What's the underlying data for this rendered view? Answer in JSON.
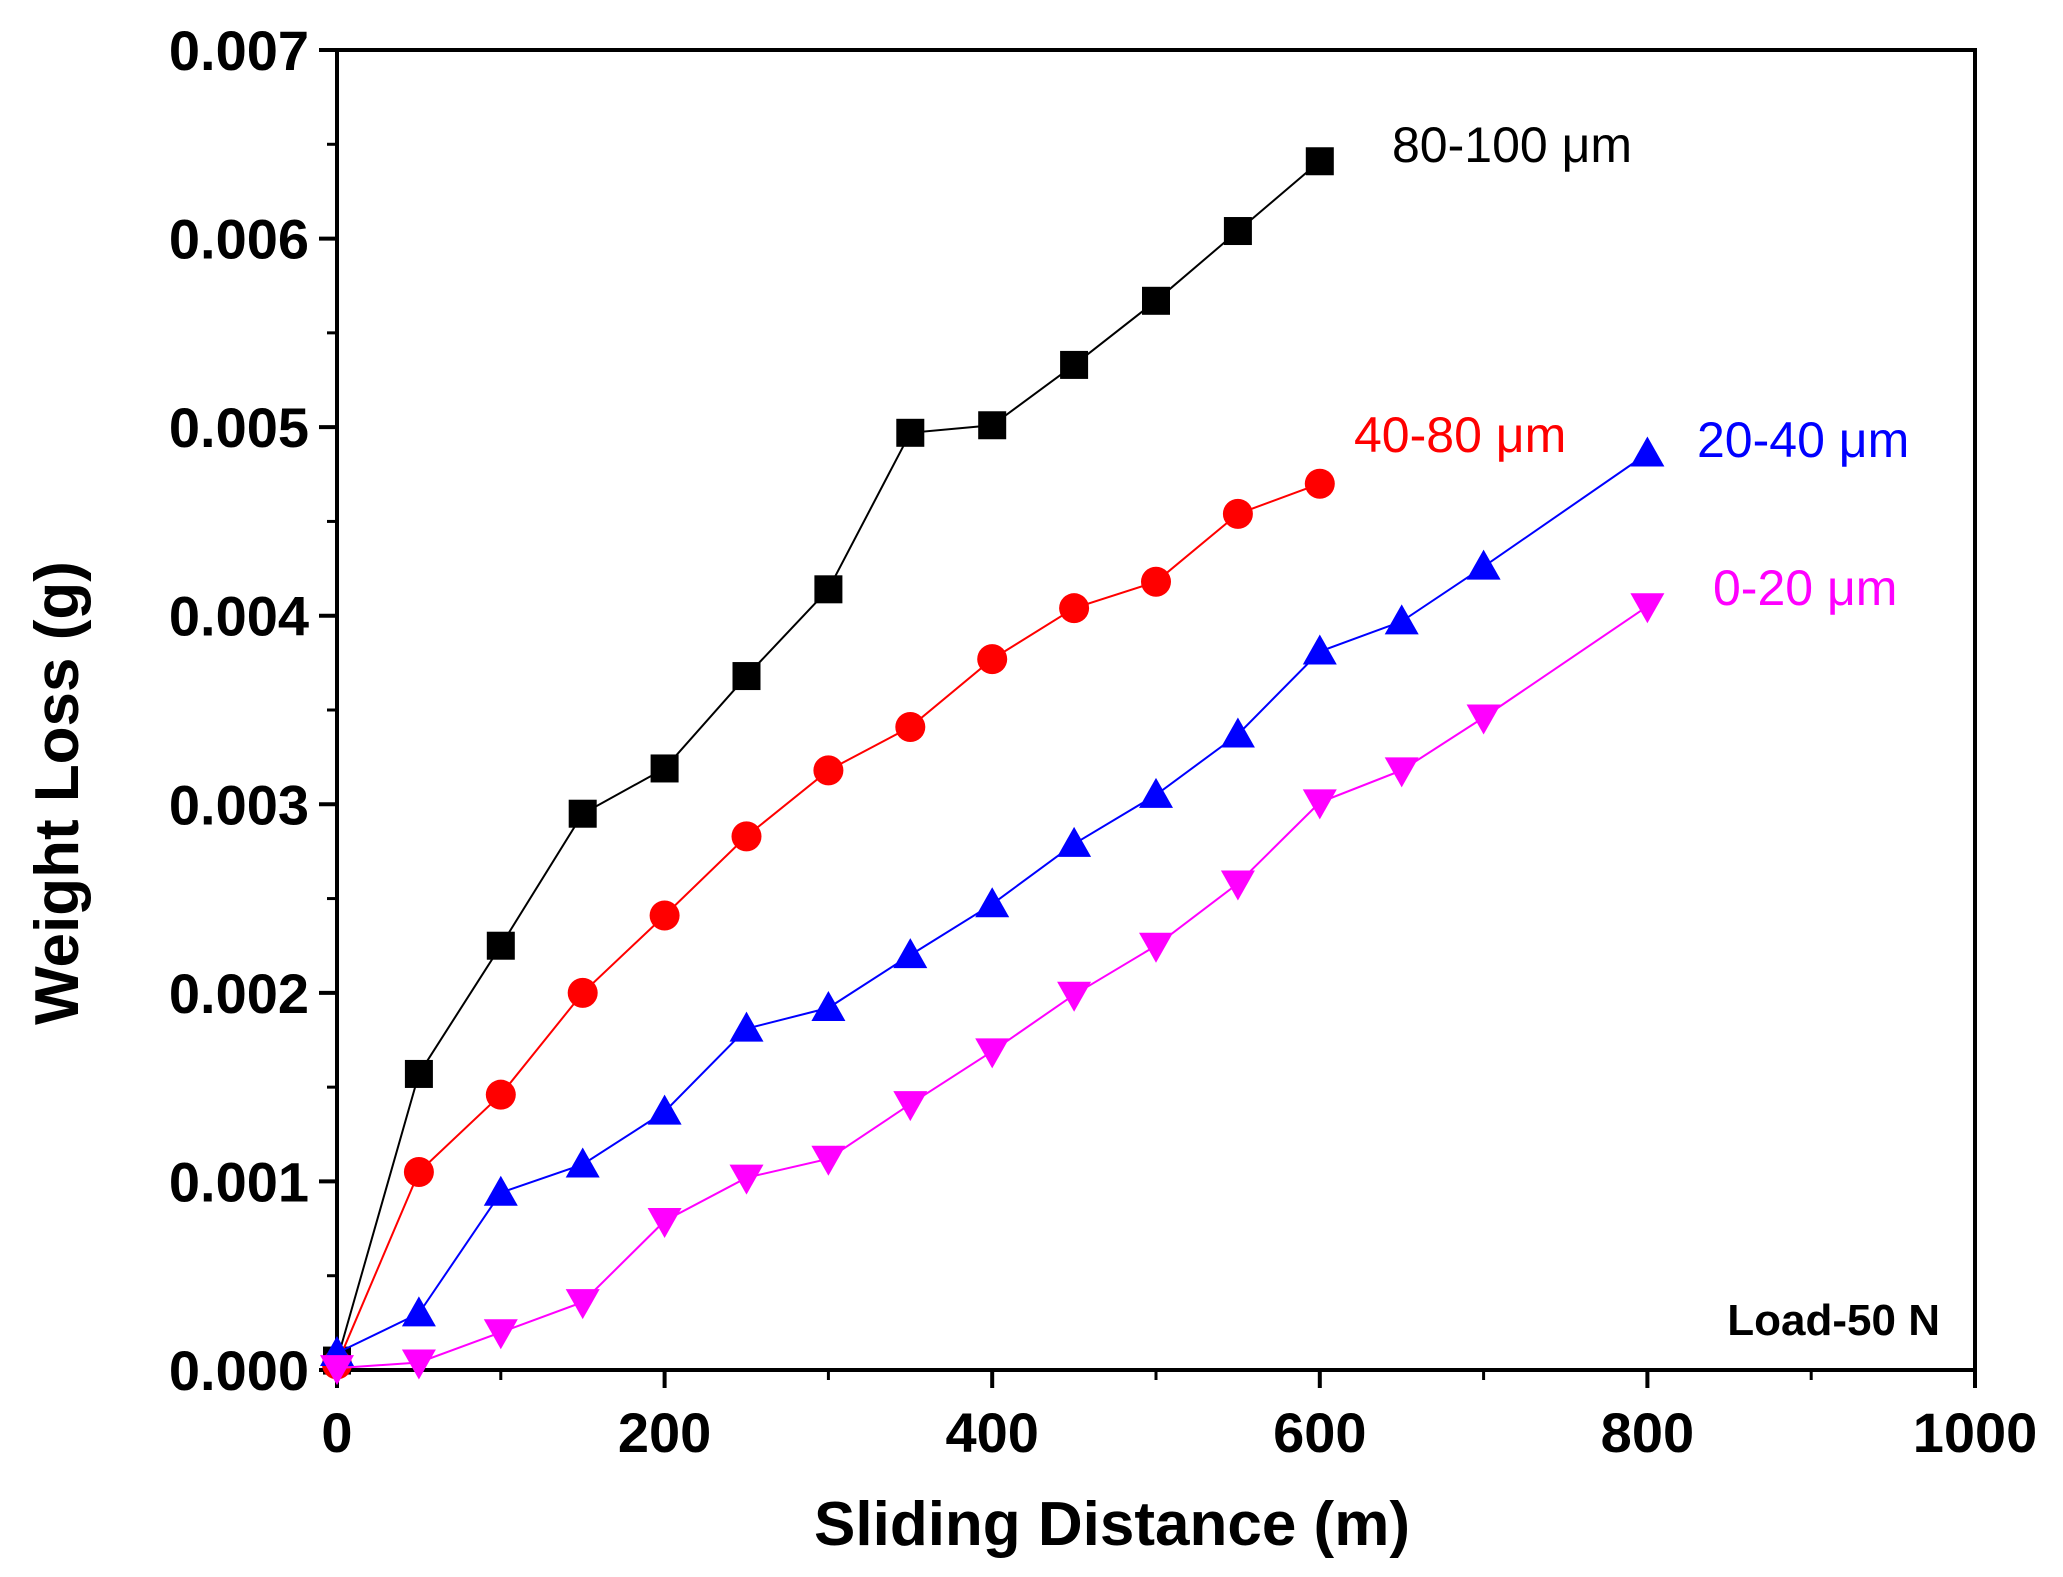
{
  "chart_data": {
    "type": "line",
    "title": "",
    "xlabel": "Sliding Distance (m)",
    "ylabel": "Weight Loss (g)",
    "xlim": [
      0,
      1000
    ],
    "ylim": [
      0,
      0.007
    ],
    "xticks": [
      0,
      200,
      400,
      600,
      800,
      1000
    ],
    "yticks": [
      0.0,
      0.001,
      0.002,
      0.003,
      0.004,
      0.005,
      0.006,
      0.007
    ],
    "xtick_labels": [
      "0",
      "200",
      "400",
      "600",
      "800",
      "1000"
    ],
    "ytick_labels": [
      "0.000",
      "0.001",
      "0.002",
      "0.003",
      "0.004",
      "0.005",
      "0.006",
      "0.007"
    ],
    "grid": false,
    "legend": "inline labels",
    "annotation": "Load-50 N",
    "series": [
      {
        "name": "80-100 μm",
        "color": "#000000",
        "marker": "square",
        "x": [
          0,
          50,
          100,
          150,
          200,
          250,
          300,
          350,
          400,
          450,
          500,
          550,
          600
        ],
        "y": [
          5e-05,
          0.00157,
          0.00225,
          0.00295,
          0.00319,
          0.00368,
          0.00414,
          0.00497,
          0.00501,
          0.00533,
          0.00567,
          0.00604,
          0.00641
        ]
      },
      {
        "name": "40-80 μm",
        "color": "#ff0000",
        "marker": "circle",
        "x": [
          0,
          50,
          100,
          150,
          200,
          250,
          300,
          350,
          400,
          450,
          500,
          550,
          600
        ],
        "y": [
          3e-05,
          0.00105,
          0.00146,
          0.002,
          0.00241,
          0.00283,
          0.00318,
          0.00341,
          0.00377,
          0.00404,
          0.00418,
          0.00454,
          0.0047
        ]
      },
      {
        "name": "20-40 μm",
        "color": "#0000ff",
        "marker": "triangle-up",
        "x": [
          0,
          50,
          100,
          150,
          200,
          250,
          300,
          350,
          400,
          450,
          500,
          550,
          600,
          650,
          700,
          800
        ],
        "y": [
          9e-05,
          0.0003,
          0.00094,
          0.00109,
          0.00137,
          0.00181,
          0.00192,
          0.0022,
          0.00247,
          0.00279,
          0.00305,
          0.00337,
          0.00381,
          0.00397,
          0.00426,
          0.00486
        ]
      },
      {
        "name": "0-20 μm",
        "color": "#ff00ff",
        "marker": "triangle-down",
        "x": [
          0,
          50,
          100,
          150,
          200,
          250,
          300,
          350,
          400,
          450,
          500,
          550,
          600,
          650,
          700,
          800
        ],
        "y": [
          1e-05,
          4e-05,
          0.0002,
          0.00036,
          0.00079,
          0.00102,
          0.00112,
          0.00141,
          0.00169,
          0.00199,
          0.00225,
          0.00258,
          0.00301,
          0.00318,
          0.00346,
          0.00405
        ]
      }
    ]
  }
}
